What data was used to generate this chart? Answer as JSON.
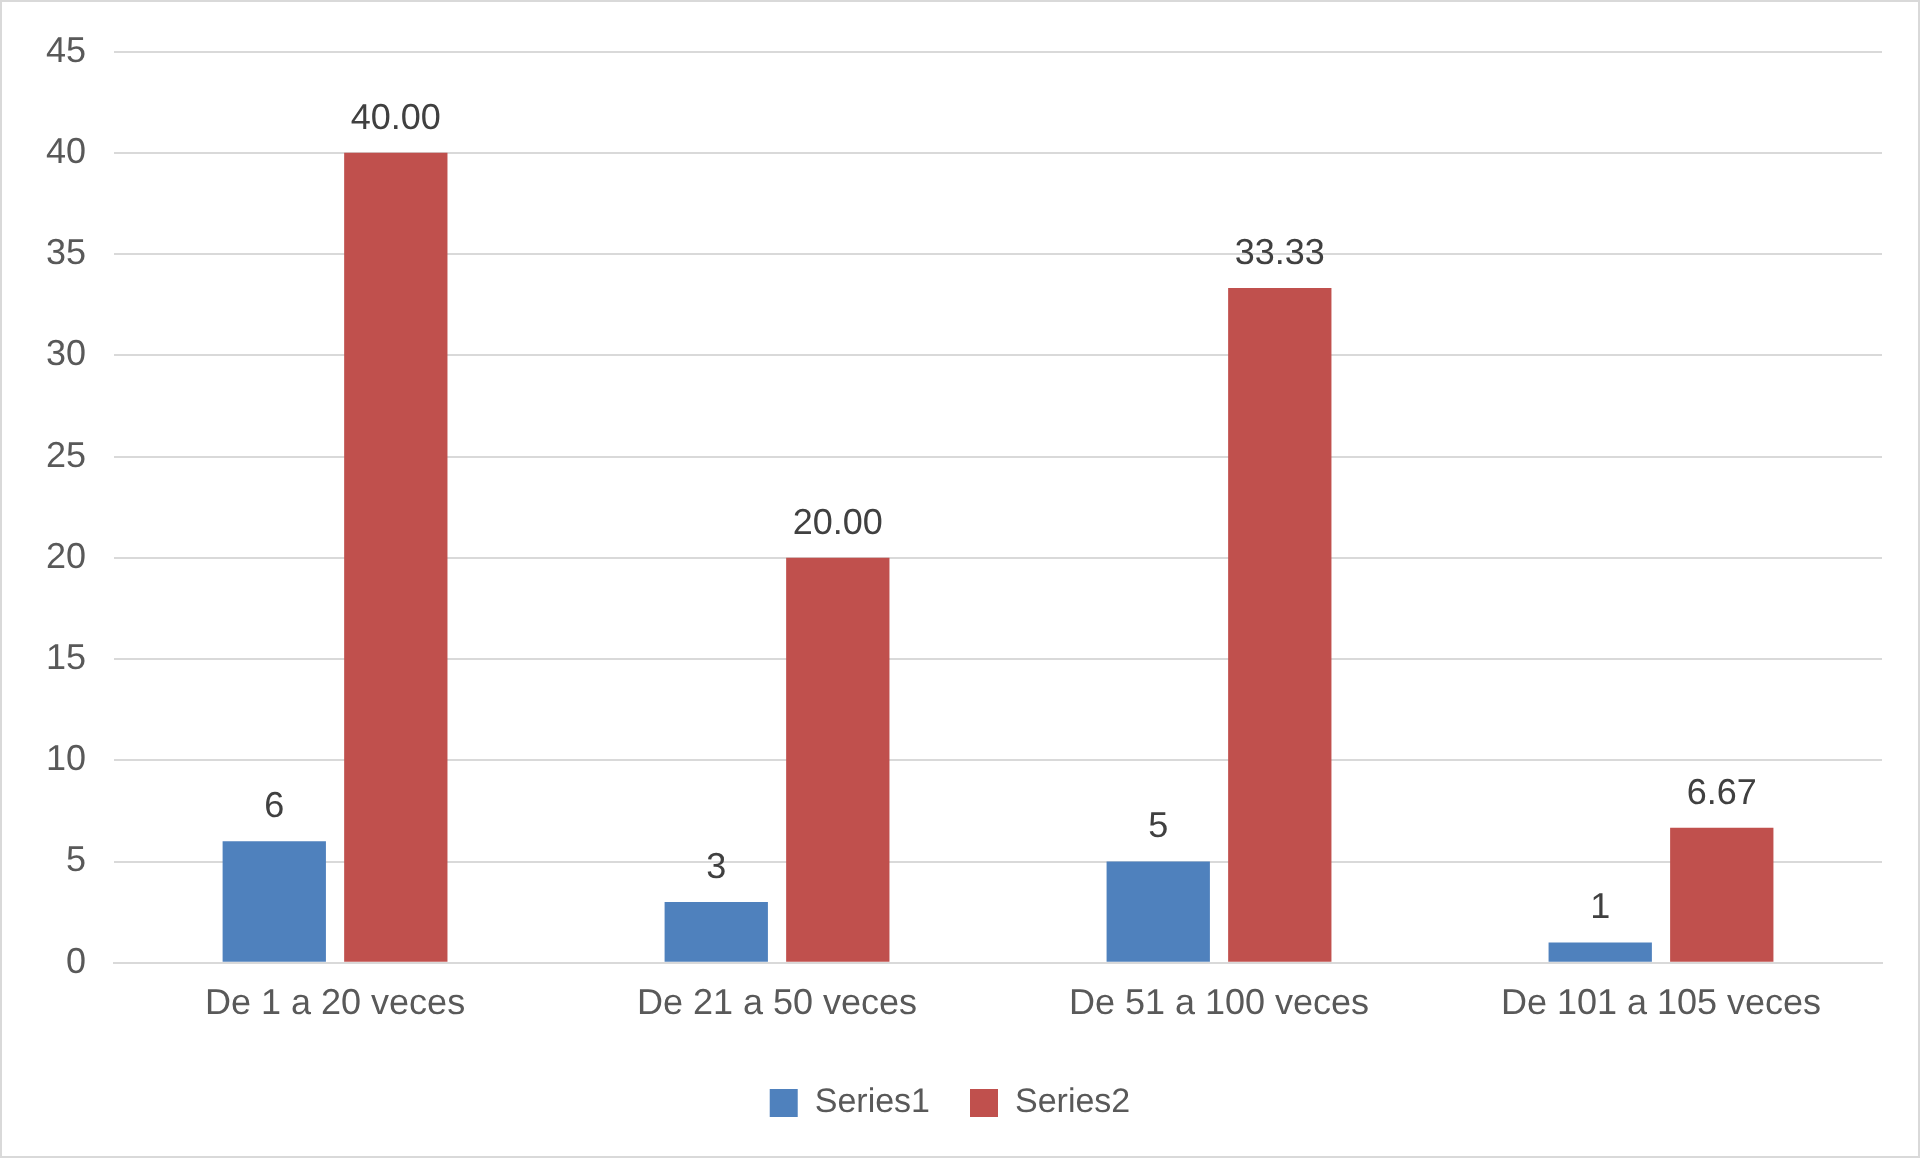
{
  "chart_data": {
    "type": "bar",
    "categories": [
      "De 1 a 20 veces",
      "De 21 a 50 veces",
      "De 51 a 100 veces",
      "De 101 a 105 veces"
    ],
    "series": [
      {
        "name": "Series1",
        "color": "#4f81bd",
        "values": [
          6,
          3,
          5,
          1
        ],
        "value_labels": [
          "6",
          "3",
          "5",
          "1"
        ]
      },
      {
        "name": "Series2",
        "color": "#c0504d",
        "values": [
          40,
          20,
          33.33,
          6.67
        ],
        "value_labels": [
          "40.00",
          "20.00",
          "33.33",
          "6.67"
        ]
      }
    ],
    "ylim": [
      0,
      45
    ],
    "yticks": [
      0,
      5,
      10,
      15,
      20,
      25,
      30,
      35,
      40,
      45
    ],
    "grid": "y",
    "legend": "bottom"
  }
}
